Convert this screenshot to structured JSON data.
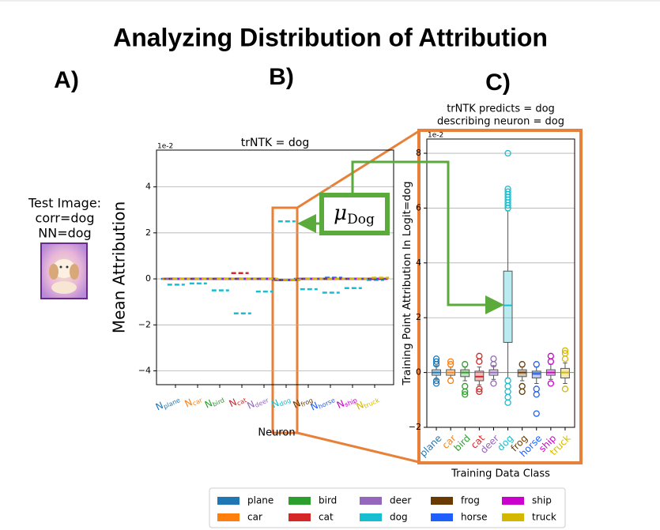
{
  "title": "Analyzing Distribution of Attribution",
  "panel_labels": [
    "A)",
    "B)",
    "C)"
  ],
  "test_image": {
    "lines": [
      "Test Image:",
      "corr=dog",
      "NN=dog"
    ]
  },
  "annotation": {
    "symbol": "μ",
    "subscript": "Dog"
  },
  "chart_data": [
    {
      "type": "dash",
      "title": "trNTK = dog",
      "offset_text": "1e-2",
      "ylabel": "Mean Attribution",
      "xlabel": "Neuron",
      "category_prefix": "N",
      "categories": [
        "plane",
        "car",
        "bird",
        "cat",
        "deer",
        "dog",
        "frog",
        "horse",
        "ship",
        "truck"
      ],
      "series": [
        {
          "name": "plane",
          "color": "#1f77b4",
          "values": [
            0,
            0,
            0,
            0,
            0,
            -0.05,
            0,
            0,
            0,
            0
          ]
        },
        {
          "name": "car",
          "color": "#ff7f0e",
          "values": [
            0,
            0,
            0,
            0,
            0,
            -0.05,
            0,
            0,
            0,
            0
          ]
        },
        {
          "name": "bird",
          "color": "#2ca02c",
          "values": [
            0,
            0,
            0,
            0,
            0,
            -0.05,
            0,
            0,
            0,
            0
          ]
        },
        {
          "name": "cat",
          "color": "#d62728",
          "values": [
            0,
            0,
            0,
            0.25,
            0,
            -0.05,
            0,
            0,
            0,
            0
          ]
        },
        {
          "name": "deer",
          "color": "#9467bd",
          "values": [
            0,
            0,
            0,
            0,
            0,
            -0.05,
            0,
            0,
            0,
            0
          ]
        },
        {
          "name": "dog",
          "color": "#17becf",
          "values": [
            -0.25,
            -0.2,
            -0.5,
            -1.5,
            -0.55,
            2.5,
            -0.45,
            -0.6,
            -0.4,
            -0.05
          ]
        },
        {
          "name": "frog",
          "color": "#6b3a00",
          "values": [
            0,
            0,
            0,
            0,
            0,
            -0.05,
            0,
            0,
            0,
            0
          ]
        },
        {
          "name": "horse",
          "color": "#1f5fff",
          "values": [
            0,
            0,
            0,
            0,
            0,
            -0.05,
            0,
            0.05,
            0,
            0
          ]
        },
        {
          "name": "ship",
          "color": "#cc00cc",
          "values": [
            0,
            0,
            0,
            0,
            0,
            -0.05,
            0,
            0,
            0,
            0
          ]
        },
        {
          "name": "truck",
          "color": "#d4b800",
          "values": [
            0,
            0,
            0,
            0,
            0,
            -0.05,
            0,
            0,
            0,
            0.05
          ]
        }
      ],
      "ylim": [
        -4.6,
        5.6
      ],
      "yticks": [
        {
          "value": -4,
          "label": "−4"
        },
        {
          "value": -2,
          "label": "−2"
        },
        0,
        2,
        4
      ],
      "grid": true
    },
    {
      "type": "box",
      "title": [
        "trNTK predicts = dog",
        "describing neuron = dog"
      ],
      "offset_text": "1e-2",
      "ylabel": "Training Point Attribution In Logit=dog",
      "xlabel": "Training Data Class",
      "categories": [
        "plane",
        "car",
        "bird",
        "cat",
        "deer",
        "dog",
        "frog",
        "horse",
        "ship",
        "truck"
      ],
      "colors": [
        "#1f77b4",
        "#ff7f0e",
        "#2ca02c",
        "#d62728",
        "#9467bd",
        "#17becf",
        "#6b3a00",
        "#1f5fff",
        "#cc00cc",
        "#d4b800"
      ],
      "boxes": [
        {
          "q1": -0.1,
          "med": 0,
          "q3": 0.1,
          "whislo": -0.25,
          "whishi": 0.25,
          "fliers": [
            -0.4,
            -0.3,
            0.3,
            0.4,
            0.5
          ]
        },
        {
          "q1": -0.1,
          "med": 0,
          "q3": 0.1,
          "whislo": -0.2,
          "whishi": 0.2,
          "fliers": [
            -0.3,
            0.3,
            0.4
          ]
        },
        {
          "q1": -0.15,
          "med": 0,
          "q3": 0.1,
          "whislo": -0.3,
          "whishi": 0.2,
          "fliers": [
            -0.5,
            -0.7,
            -0.8,
            0.3
          ]
        },
        {
          "q1": -0.3,
          "med": -0.15,
          "q3": 0.05,
          "whislo": -0.45,
          "whishi": 0.2,
          "fliers": [
            -0.6,
            -0.7,
            0.4,
            0.6
          ]
        },
        {
          "q1": -0.1,
          "med": 0,
          "q3": 0.1,
          "whislo": -0.25,
          "whishi": 0.25,
          "fliers": [
            -0.4,
            0.3,
            0.5
          ]
        },
        {
          "q1": 1.1,
          "med": 2.45,
          "q3": 3.7,
          "whislo": -0.2,
          "whishi": 5.9,
          "fliers": [
            6.0,
            6.1,
            6.2,
            6.3,
            6.4,
            6.5,
            6.6,
            6.7,
            8.0,
            -0.3,
            -0.5,
            -0.7,
            -0.9,
            -1.1
          ]
        },
        {
          "q1": -0.15,
          "med": 0,
          "q3": 0.1,
          "whislo": -0.3,
          "whishi": 0.2,
          "fliers": [
            -0.5,
            -0.7,
            0.3
          ]
        },
        {
          "q1": -0.2,
          "med": -0.05,
          "q3": 0.05,
          "whislo": -0.4,
          "whishi": 0.2,
          "fliers": [
            -0.6,
            -0.8,
            -1.5,
            0.3
          ]
        },
        {
          "q1": -0.1,
          "med": 0,
          "q3": 0.1,
          "whislo": -0.25,
          "whishi": 0.3,
          "fliers": [
            -0.4,
            0.4,
            0.6
          ]
        },
        {
          "q1": -0.2,
          "med": 0,
          "q3": 0.15,
          "whislo": -0.4,
          "whishi": 0.35,
          "fliers": [
            -0.6,
            0.5,
            0.7,
            0.8
          ]
        }
      ],
      "ylim": [
        -2,
        8.52
      ],
      "yticks": [
        {
          "value": -2,
          "label": "−2"
        },
        0,
        2,
        4,
        6,
        8
      ],
      "grid": true
    }
  ]
}
